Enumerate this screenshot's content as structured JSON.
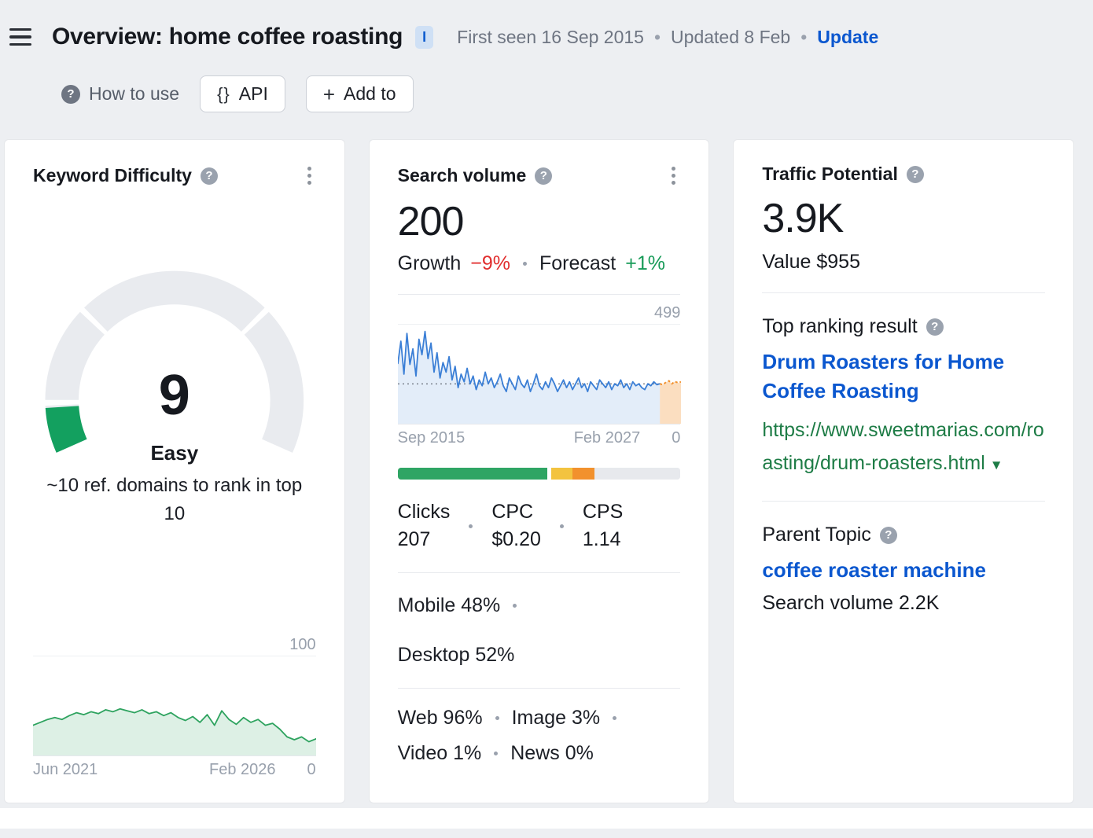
{
  "header": {
    "title": "Overview: home coffee roasting",
    "badge": "I",
    "first_seen": "First seen 16 Sep 2015",
    "updated": "Updated 8 Feb",
    "update_link": "Update",
    "how_to_use_label": "How to use",
    "api_label": "API",
    "add_to_label": "Add to"
  },
  "icons": {
    "dot": "•",
    "question": "?",
    "braces": "{}",
    "plus": "+",
    "caret_down": "▼"
  },
  "colors": {
    "blue": "#0b57cf",
    "green": "#169a57",
    "green_url": "#1e7c46",
    "red": "#e12d2d",
    "gauge_green": "#13a05f",
    "kd_line": "#2ea35f",
    "volume_line": "#3b7fd6",
    "orange": "#f2912d"
  },
  "keyword_difficulty": {
    "title": "Keyword Difficulty",
    "score_label": "9",
    "level": "Easy",
    "description": "~10 ref. domains to rank in top 10"
  },
  "search_volume": {
    "title": "Search volume",
    "value": "200",
    "growth_label": "Growth",
    "growth_value": "−9%",
    "forecast_label": "Forecast",
    "forecast_value": "+1%",
    "stats": [
      {
        "label": "Clicks",
        "value": "207"
      },
      {
        "label": "CPC",
        "value": "$0.20"
      },
      {
        "label": "CPS",
        "value": "1.14"
      }
    ],
    "mobile": "Mobile 48%",
    "desktop": "Desktop 52%",
    "web": "Web 96%",
    "image": "Image 3%",
    "video": "Video 1%",
    "news": "News 0%"
  },
  "traffic_potential": {
    "title": "Traffic Potential",
    "value": "3.9K",
    "value_label": "Value $955",
    "top_ranking_label": "Top ranking result",
    "top_result_title": "Drum Roasters for Home Coffee Roasting",
    "top_result_url": "https://www.sweetmarias.com/roasting/drum-roasters.html",
    "parent_topic_label": "Parent Topic",
    "parent_topic": "coffee roaster machine",
    "parent_search_volume": "Search volume 2.2K"
  },
  "chart_data": [
    {
      "type": "gauge",
      "title": "Keyword Difficulty",
      "value": 9,
      "min": 0,
      "max": 100,
      "segments": [
        10,
        30,
        70,
        100
      ],
      "label": "Easy"
    },
    {
      "type": "area",
      "title": "Keyword Difficulty history",
      "x_start": "Jun 2021",
      "x_end": "Feb 2026",
      "ymax_label": "100",
      "ymin_label": "0",
      "ylim": [
        0,
        100
      ],
      "values": [
        30,
        33,
        36,
        38,
        36,
        40,
        43,
        41,
        44,
        42,
        46,
        44,
        47,
        45,
        43,
        46,
        42,
        44,
        40,
        43,
        38,
        35,
        39,
        33,
        41,
        30,
        45,
        36,
        31,
        38,
        33,
        36,
        30,
        32,
        26,
        18,
        15,
        18,
        13,
        16
      ]
    },
    {
      "type": "line",
      "title": "Search volume history",
      "x_start": "Sep 2015",
      "x_end": "Feb 2027",
      "ymax_label": "499",
      "ymin_label": "0",
      "ylim": [
        0,
        499
      ],
      "avg": 200,
      "values": [
        305,
        420,
        250,
        460,
        300,
        380,
        240,
        430,
        350,
        470,
        330,
        410,
        260,
        360,
        230,
        310,
        260,
        340,
        220,
        290,
        180,
        250,
        210,
        280,
        200,
        240,
        170,
        220,
        190,
        260,
        200,
        230,
        180,
        210,
        250,
        190,
        160,
        230,
        200,
        170,
        240,
        200,
        180,
        220,
        160,
        200,
        250,
        190,
        170,
        210,
        180,
        230,
        200,
        160,
        190,
        220,
        180,
        210,
        170,
        200,
        230,
        180,
        200,
        160,
        210,
        190,
        170,
        220,
        200,
        180,
        210,
        170,
        200,
        190,
        220,
        180,
        200,
        170,
        210,
        190,
        200,
        180,
        170,
        200,
        190,
        210,
        195,
        200
      ],
      "forecast": [
        195,
        208,
        215,
        200,
        212,
        205,
        210
      ]
    },
    {
      "type": "stacked-bar",
      "title": "Clicks distribution",
      "segments": [
        {
          "label": "clicks-share",
          "pct": 53,
          "color": "#2fa564"
        },
        {
          "label": "gap",
          "pct": 1.2,
          "color": "#ffffff"
        },
        {
          "label": "yellow-share",
          "pct": 7.5,
          "color": "#f3c33f"
        },
        {
          "label": "orange-share",
          "pct": 7.8,
          "color": "#f2912d"
        },
        {
          "label": "remainder",
          "pct": 30.5,
          "color": "#e7e9ed"
        }
      ]
    }
  ]
}
